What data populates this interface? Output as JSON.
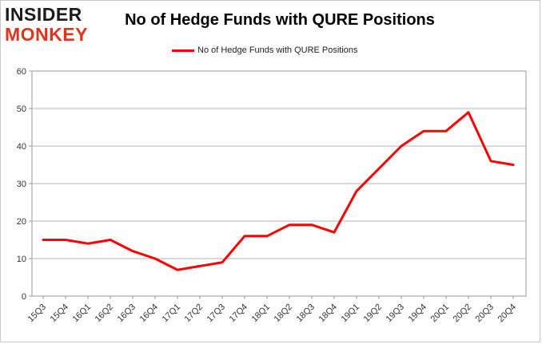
{
  "logo": {
    "line1": "INSIDER",
    "line2": "MONKEY"
  },
  "chart_data": {
    "type": "line",
    "title": "No of Hedge Funds with QURE Positions",
    "xlabel": "",
    "ylabel": "",
    "ylim": [
      0,
      60
    ],
    "yticks": [
      0,
      10,
      20,
      30,
      40,
      50,
      60
    ],
    "grid": true,
    "legend_position": "top-center",
    "categories": [
      "15Q3",
      "15Q4",
      "16Q1",
      "16Q2",
      "16Q3",
      "16Q4",
      "17Q1",
      "17Q2",
      "17Q3",
      "17Q4",
      "18Q1",
      "18Q2",
      "18Q3",
      "18Q4",
      "19Q1",
      "19Q2",
      "19Q3",
      "19Q4",
      "20Q1",
      "20Q2",
      "20Q3",
      "20Q4"
    ],
    "series": [
      {
        "name": "No of Hedge Funds with QURE Positions",
        "color": "#ff0000",
        "values": [
          15,
          15,
          14,
          15,
          12,
          10,
          7,
          8,
          9,
          16,
          16,
          19,
          19,
          17,
          28,
          34,
          40,
          44,
          44,
          49,
          36,
          35
        ]
      }
    ]
  }
}
